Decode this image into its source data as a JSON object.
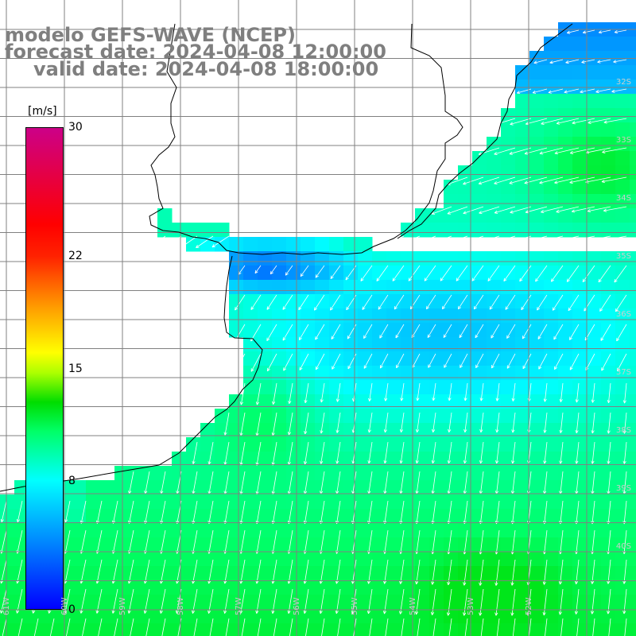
{
  "title": {
    "line1": "modelo GEFS-WAVE (NCEP)",
    "line2": "forecast date: 2024-04-08 12:00:00",
    "line3": "valid date: 2024-04-08 18:00:00"
  },
  "legend": {
    "unit": "[m/s]",
    "ticks": [
      "30",
      "22",
      "15",
      "8",
      "0"
    ],
    "tick_values": [
      30,
      22,
      15,
      8,
      0
    ],
    "min": 0,
    "max": 30
  },
  "lat_labels": [
    "32S",
    "33S",
    "34S",
    "35S",
    "36S",
    "37S",
    "38S",
    "39S",
    "40S"
  ],
  "lon_labels": [
    "61W",
    "60W",
    "59W",
    "58W",
    "57W",
    "56W",
    "55W",
    "54W",
    "53W",
    "52W"
  ],
  "colors": {
    "land": "#ffffff",
    "coastline": "#000000",
    "grid": "#808080",
    "arrows": "#ffffff",
    "title": "#7f7f7f"
  }
}
